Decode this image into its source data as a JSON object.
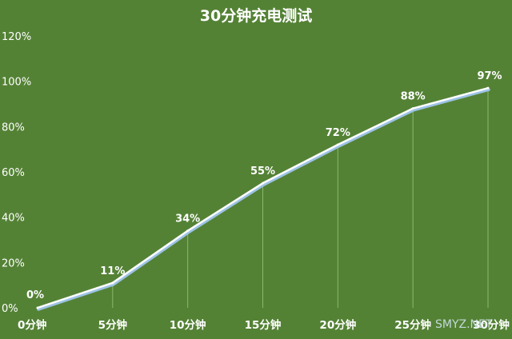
{
  "chart_data": {
    "type": "line",
    "title": "30分钟充电测试",
    "categories": [
      "0分钟",
      "5分钟",
      "10分钟",
      "15分钟",
      "20分钟",
      "25分钟",
      "30分钟"
    ],
    "series": [
      {
        "values": [
          0,
          11,
          34,
          55,
          72,
          88,
          97
        ]
      }
    ],
    "data_labels": [
      "0%",
      "11%",
      "34%",
      "55%",
      "72%",
      "88%",
      "97%"
    ],
    "yticks": [
      "0%",
      "20%",
      "40%",
      "60%",
      "80%",
      "100%",
      "120%"
    ],
    "ylim": [
      0,
      120
    ],
    "xlabel": "",
    "ylabel": "",
    "grid": false,
    "drop_lines": true,
    "colors": {
      "background": "#548235",
      "line": "#ffffff",
      "line_shadow": "#9dc3e6",
      "text": "#ffffff"
    }
  },
  "watermark": "SMYZ.NET"
}
